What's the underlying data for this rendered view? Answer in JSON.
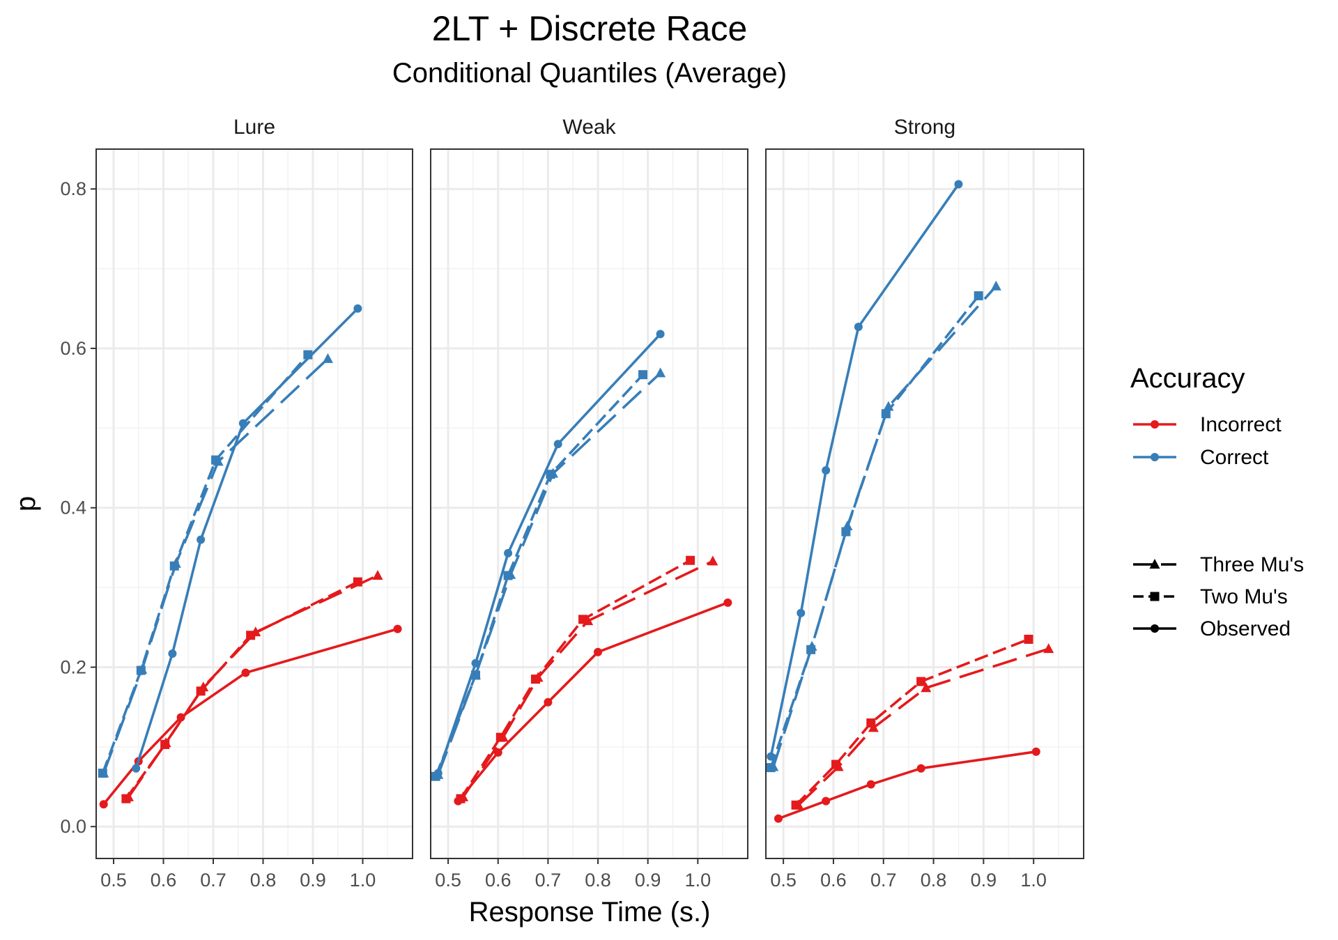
{
  "chart_data": {
    "type": "line",
    "title": "2LT + Discrete Race",
    "subtitle": "Conditional Quantiles (Average)",
    "xlabel": "Response Time (s.)",
    "ylabel": "p",
    "xlim": [
      0.465,
      1.1
    ],
    "ylim": [
      -0.04,
      0.85
    ],
    "x_ticks": [
      0.5,
      0.6,
      0.7,
      0.8,
      0.9,
      1.0
    ],
    "x_tick_labels": [
      "0.5",
      "0.6",
      "0.7",
      "0.8",
      "0.9",
      "1.0"
    ],
    "y_ticks": [
      0.0,
      0.2,
      0.4,
      0.6,
      0.8
    ],
    "y_tick_labels": [
      "0.0",
      "0.2",
      "0.4",
      "0.6",
      "0.8"
    ],
    "grid": true,
    "legend_placement": "right",
    "legend": {
      "accuracy_title": "Accuracy",
      "accuracy_items": [
        {
          "label": "Incorrect",
          "color": "#E41A1C"
        },
        {
          "label": "Correct",
          "color": "#377EB8"
        }
      ],
      "model_items": [
        {
          "label": "Three Mu's",
          "dash": "long",
          "shape": "triangle"
        },
        {
          "label": "Two Mu's",
          "dash": "short",
          "shape": "square"
        },
        {
          "label": "Observed",
          "dash": "solid",
          "shape": "circle"
        }
      ]
    },
    "panels": [
      {
        "name": "Lure",
        "series": [
          {
            "accuracy": "Incorrect",
            "model": "Observed",
            "color": "#E41A1C",
            "x": [
              0.48,
              0.55,
              0.635,
              0.765,
              1.07
            ],
            "y": [
              0.028,
              0.082,
              0.137,
              0.193,
              0.248
            ]
          },
          {
            "accuracy": "Incorrect",
            "model": "Two Mu's",
            "color": "#E41A1C",
            "x": [
              0.525,
              0.603,
              0.675,
              0.775,
              0.99
            ],
            "y": [
              0.035,
              0.103,
              0.17,
              0.24,
              0.307
            ]
          },
          {
            "accuracy": "Incorrect",
            "model": "Three Mu's",
            "color": "#E41A1C",
            "x": [
              0.53,
              0.605,
              0.68,
              0.785,
              1.03
            ],
            "y": [
              0.037,
              0.105,
              0.175,
              0.244,
              0.315
            ]
          },
          {
            "accuracy": "Correct",
            "model": "Observed",
            "color": "#377EB8",
            "x": [
              0.545,
              0.618,
              0.675,
              0.76,
              0.99
            ],
            "y": [
              0.073,
              0.217,
              0.36,
              0.506,
              0.65
            ]
          },
          {
            "accuracy": "Correct",
            "model": "Two Mu's",
            "color": "#377EB8",
            "x": [
              0.478,
              0.555,
              0.622,
              0.705,
              0.89
            ],
            "y": [
              0.067,
              0.196,
              0.327,
              0.46,
              0.592
            ]
          },
          {
            "accuracy": "Correct",
            "model": "Three Mu's",
            "color": "#377EB8",
            "x": [
              0.48,
              0.557,
              0.625,
              0.71,
              0.93
            ],
            "y": [
              0.067,
              0.197,
              0.33,
              0.458,
              0.587
            ]
          }
        ]
      },
      {
        "name": "Weak",
        "series": [
          {
            "accuracy": "Incorrect",
            "model": "Observed",
            "color": "#E41A1C",
            "x": [
              0.52,
              0.6,
              0.7,
              0.8,
              1.06
            ],
            "y": [
              0.032,
              0.093,
              0.156,
              0.219,
              0.281
            ]
          },
          {
            "accuracy": "Incorrect",
            "model": "Two Mu's",
            "color": "#E41A1C",
            "x": [
              0.525,
              0.605,
              0.675,
              0.77,
              0.985
            ],
            "y": [
              0.035,
              0.112,
              0.185,
              0.26,
              0.334
            ]
          },
          {
            "accuracy": "Incorrect",
            "model": "Three Mu's",
            "color": "#E41A1C",
            "x": [
              0.53,
              0.61,
              0.68,
              0.78,
              1.03
            ],
            "y": [
              0.037,
              0.112,
              0.187,
              0.258,
              0.333
            ]
          },
          {
            "accuracy": "Correct",
            "model": "Observed",
            "color": "#377EB8",
            "x": [
              0.48,
              0.555,
              0.62,
              0.72,
              0.925
            ],
            "y": [
              0.067,
              0.205,
              0.343,
              0.48,
              0.618
            ]
          },
          {
            "accuracy": "Correct",
            "model": "Two Mu's",
            "color": "#377EB8",
            "x": [
              0.475,
              0.555,
              0.62,
              0.705,
              0.89
            ],
            "y": [
              0.063,
              0.19,
              0.315,
              0.442,
              0.567
            ]
          },
          {
            "accuracy": "Correct",
            "model": "Three Mu's",
            "color": "#377EB8",
            "x": [
              0.48,
              0.555,
              0.625,
              0.71,
              0.925
            ],
            "y": [
              0.065,
              0.19,
              0.316,
              0.443,
              0.569
            ]
          }
        ]
      },
      {
        "name": "Strong",
        "series": [
          {
            "accuracy": "Incorrect",
            "model": "Observed",
            "color": "#E41A1C",
            "x": [
              0.49,
              0.585,
              0.675,
              0.775,
              1.005
            ],
            "y": [
              0.01,
              0.032,
              0.053,
              0.073,
              0.094
            ]
          },
          {
            "accuracy": "Incorrect",
            "model": "Two Mu's",
            "color": "#E41A1C",
            "x": [
              0.525,
              0.605,
              0.675,
              0.775,
              0.99
            ],
            "y": [
              0.027,
              0.078,
              0.13,
              0.182,
              0.235
            ]
          },
          {
            "accuracy": "Incorrect",
            "model": "Three Mu's",
            "color": "#E41A1C",
            "x": [
              0.53,
              0.61,
              0.68,
              0.785,
              1.03
            ],
            "y": [
              0.027,
              0.075,
              0.124,
              0.174,
              0.223
            ]
          },
          {
            "accuracy": "Correct",
            "model": "Observed",
            "color": "#377EB8",
            "x": [
              0.475,
              0.535,
              0.585,
              0.65,
              0.85
            ],
            "y": [
              0.088,
              0.268,
              0.447,
              0.627,
              0.806
            ]
          },
          {
            "accuracy": "Correct",
            "model": "Two Mu's",
            "color": "#377EB8",
            "x": [
              0.475,
              0.555,
              0.625,
              0.705,
              0.89
            ],
            "y": [
              0.074,
              0.222,
              0.37,
              0.518,
              0.666
            ]
          },
          {
            "accuracy": "Correct",
            "model": "Three Mu's",
            "color": "#377EB8",
            "x": [
              0.48,
              0.557,
              0.628,
              0.71,
              0.925
            ],
            "y": [
              0.075,
              0.226,
              0.377,
              0.527,
              0.678
            ]
          }
        ]
      }
    ]
  }
}
